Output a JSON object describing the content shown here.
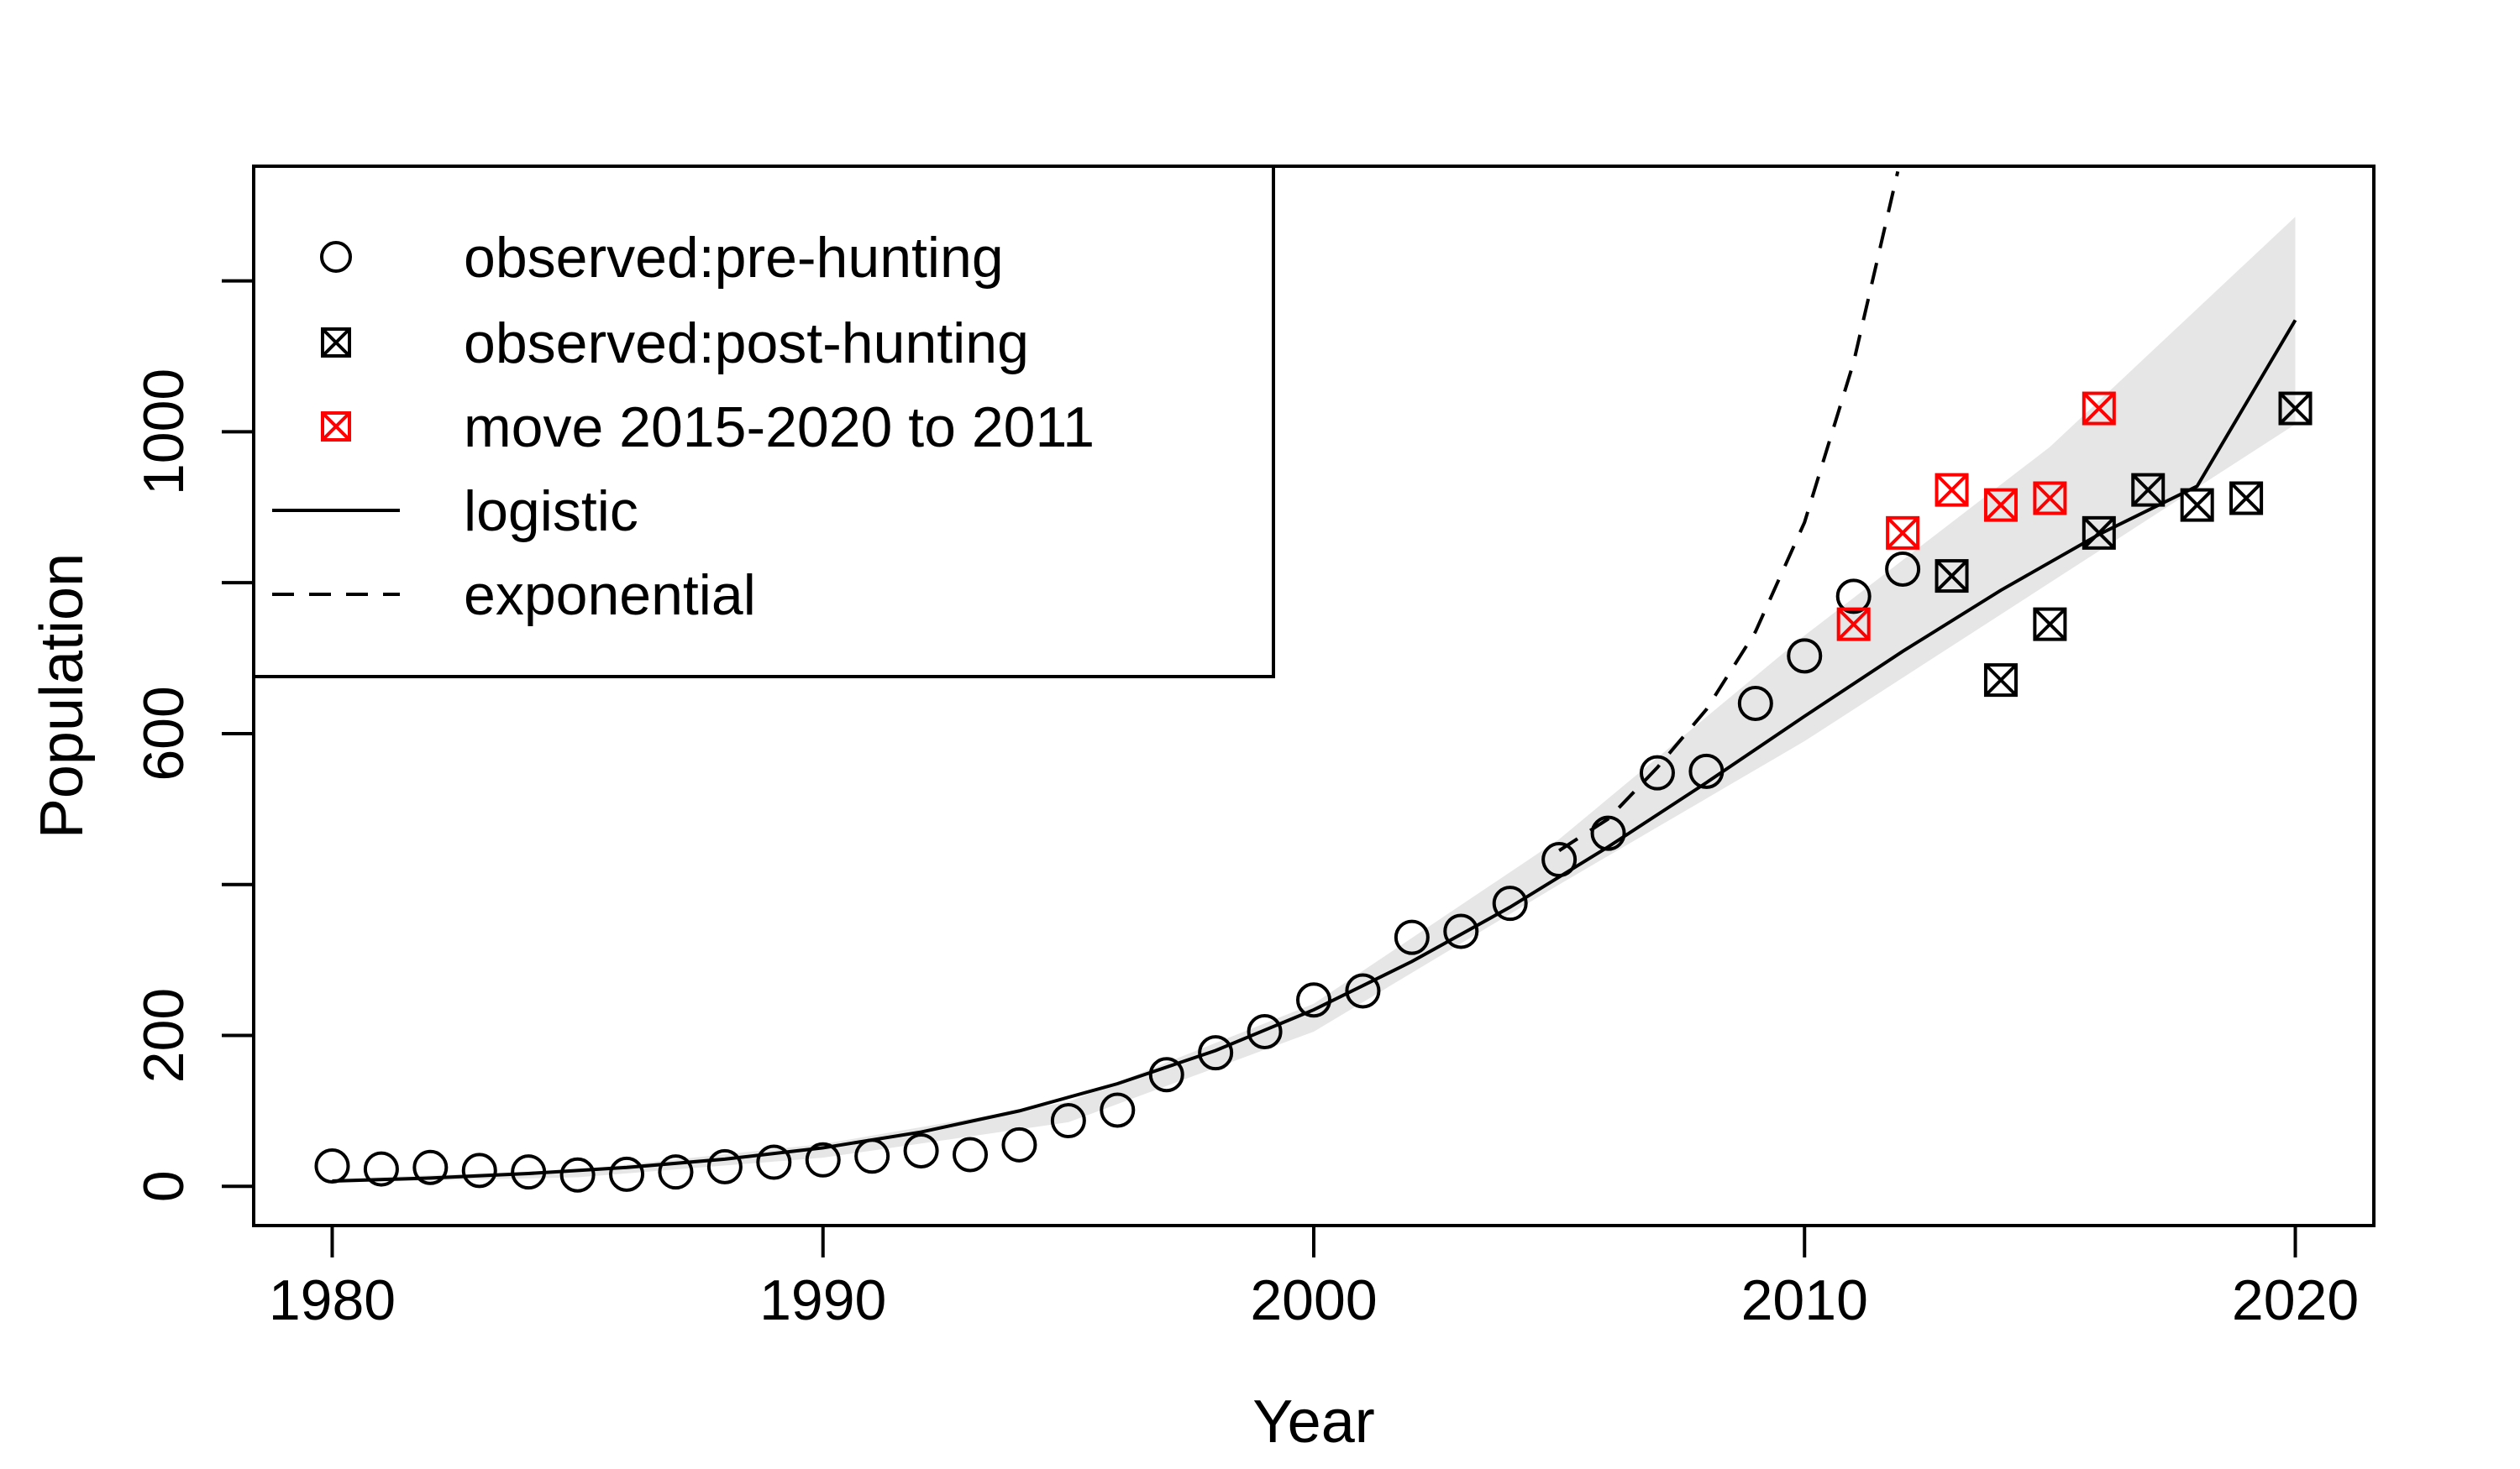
{
  "chart_data": {
    "type": "scatter",
    "title": "",
    "xlabel": "Year",
    "ylabel": "Population",
    "xlim": [
      1978.4,
      2021.6
    ],
    "ylim": [
      -52,
      1352
    ],
    "x_ticks": [
      1980,
      1990,
      2000,
      2010,
      2020
    ],
    "y_ticks": [
      0,
      200,
      400,
      600,
      800,
      1000,
      1200
    ],
    "y_tick_labels": [
      "0",
      "200",
      "",
      "600",
      "",
      "1000",
      ""
    ],
    "grid": false,
    "legend_position": "top-left",
    "legend": [
      {
        "label": "observed:pre-hunting",
        "symbol": "circle",
        "color": "#000000"
      },
      {
        "label": "observed:post-hunting",
        "symbol": "boxed-x",
        "color": "#000000"
      },
      {
        "label": "move 2015-2020 to 2011",
        "symbol": "boxed-x",
        "color": "#ff0000"
      },
      {
        "label": "logistic",
        "symbol": "solid-line",
        "color": "#000000"
      },
      {
        "label": "exponential",
        "symbol": "dashed-line",
        "color": "#000000"
      }
    ],
    "series": [
      {
        "name": "observed:pre-hunting",
        "marker": "circle",
        "color": "#000000",
        "points": [
          [
            1980,
            27
          ],
          [
            1981,
            23
          ],
          [
            1982,
            25
          ],
          [
            1983,
            21
          ],
          [
            1984,
            19
          ],
          [
            1985,
            15
          ],
          [
            1986,
            16
          ],
          [
            1987,
            19
          ],
          [
            1988,
            26
          ],
          [
            1989,
            32
          ],
          [
            1990,
            35
          ],
          [
            1991,
            40
          ],
          [
            1992,
            47
          ],
          [
            1993,
            42
          ],
          [
            1994,
            55
          ],
          [
            1995,
            87
          ],
          [
            1996,
            101
          ],
          [
            1997,
            148
          ],
          [
            1998,
            177
          ],
          [
            1999,
            205
          ],
          [
            2000,
            247
          ],
          [
            2001,
            259
          ],
          [
            2002,
            330
          ],
          [
            2003,
            338
          ],
          [
            2004,
            375
          ],
          [
            2005,
            433
          ],
          [
            2006,
            468
          ],
          [
            2007,
            548
          ],
          [
            2008,
            550
          ],
          [
            2009,
            640
          ],
          [
            2010,
            703
          ],
          [
            2011,
            782
          ],
          [
            2012,
            818
          ]
        ]
      },
      {
        "name": "observed:post-hunting",
        "marker": "boxed-x",
        "color": "#000000",
        "points": [
          [
            2013,
            809
          ],
          [
            2014,
            671
          ],
          [
            2015,
            745
          ],
          [
            2016,
            866
          ],
          [
            2017,
            923
          ],
          [
            2018,
            903
          ],
          [
            2019,
            912
          ],
          [
            2020,
            1031
          ]
        ]
      },
      {
        "name": "move 2015-2020 to 2011",
        "marker": "boxed-x",
        "color": "#ff0000",
        "points": [
          [
            2011,
            745
          ],
          [
            2012,
            866
          ],
          [
            2013,
            923
          ],
          [
            2014,
            903
          ],
          [
            2015,
            912
          ],
          [
            2016,
            1031
          ]
        ]
      },
      {
        "name": "logistic",
        "line": "solid",
        "color": "#000000",
        "points": [
          [
            1980,
            7
          ],
          [
            1982,
            11
          ],
          [
            1984,
            17
          ],
          [
            1986,
            25
          ],
          [
            1988,
            36
          ],
          [
            1990,
            51
          ],
          [
            1992,
            72
          ],
          [
            1994,
            100
          ],
          [
            1996,
            136
          ],
          [
            1998,
            180
          ],
          [
            2000,
            234
          ],
          [
            2002,
            298
          ],
          [
            2004,
            370
          ],
          [
            2006,
            450
          ],
          [
            2008,
            535
          ],
          [
            2010,
            623
          ],
          [
            2012,
            709
          ],
          [
            2014,
            790
          ],
          [
            2016,
            864
          ],
          [
            2018,
            928
          ],
          [
            2020,
            1148
          ]
        ]
      },
      {
        "name": "exponential",
        "line": "dashed",
        "color": "#000000",
        "points": [
          [
            2005,
            445
          ],
          [
            2006,
            487
          ],
          [
            2007,
            555
          ],
          [
            2008,
            632
          ],
          [
            2009,
            735
          ],
          [
            2010,
            880
          ],
          [
            2011,
            1092
          ],
          [
            2011.9,
            1345
          ]
        ]
      },
      {
        "name": "logistic confidence band",
        "type": "area",
        "color": "#e6e6e6",
        "x": [
          1980,
          1985,
          1990,
          1995,
          2000,
          2005,
          2010,
          2015,
          2020
        ],
        "lower": [
          5,
          12,
          38,
          85,
          205,
          400,
          590,
          800,
          1010
        ],
        "upper": [
          10,
          22,
          56,
          112,
          242,
          460,
          730,
          980,
          1285
        ]
      }
    ]
  }
}
